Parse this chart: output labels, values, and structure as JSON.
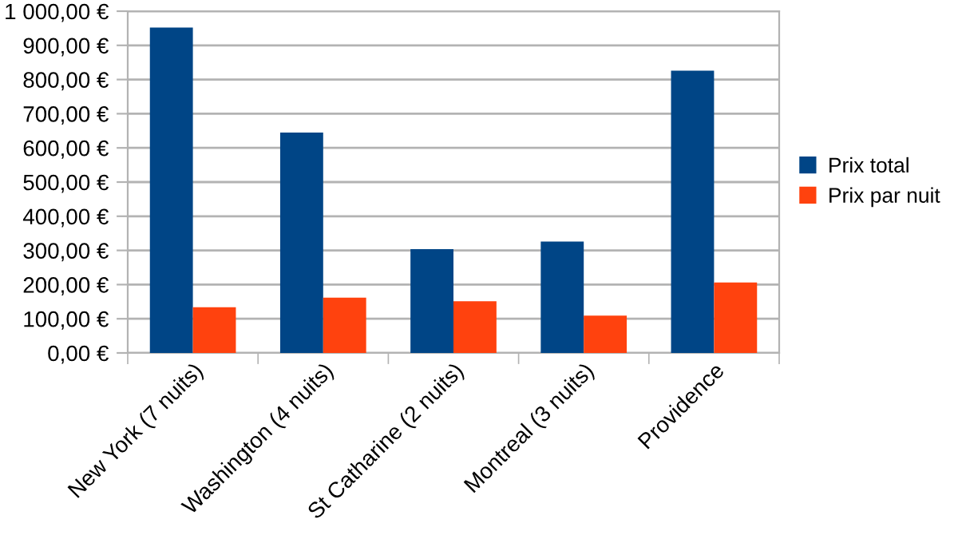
{
  "chart_data": {
    "type": "bar",
    "categories": [
      "New York (7 nuits)",
      "Washington (4 nuits)",
      "St Catharine (2 nuits)",
      "Montreal (3 nuits)",
      "Providence"
    ],
    "series": [
      {
        "name": "Prix total",
        "color": "#004586",
        "values": [
          952,
          645,
          304,
          326,
          826
        ]
      },
      {
        "name": "Prix par nuit",
        "color": "#ff420e",
        "values": [
          134,
          162,
          151,
          109,
          206
        ]
      }
    ],
    "ylim": [
      0,
      1000
    ],
    "yticks": [
      {
        "value": 0,
        "label": "0,00 €"
      },
      {
        "value": 100,
        "label": "100,00 €"
      },
      {
        "value": 200,
        "label": "200,00 €"
      },
      {
        "value": 300,
        "label": "300,00 €"
      },
      {
        "value": 400,
        "label": "400,00 €"
      },
      {
        "value": 500,
        "label": "500,00 €"
      },
      {
        "value": 600,
        "label": "600,00 €"
      },
      {
        "value": 700,
        "label": "700,00 €"
      },
      {
        "value": 800,
        "label": "800,00 €"
      },
      {
        "value": 900,
        "label": "900,00 €"
      },
      {
        "value": 1000,
        "label": "1 000,00 €"
      }
    ],
    "grid": "y",
    "legend": "right"
  }
}
